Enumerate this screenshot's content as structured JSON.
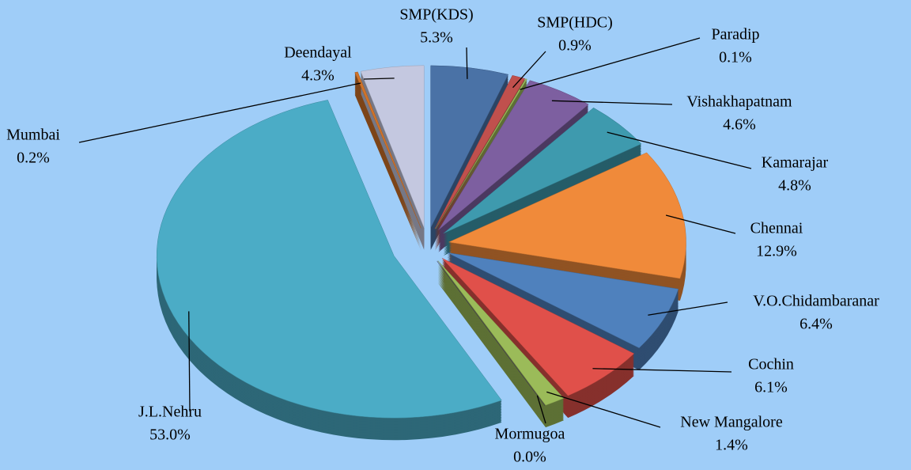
{
  "chart_data": {
    "type": "pie",
    "categories": [
      "SMP(KDS)",
      "SMP(HDC)",
      "Paradip",
      "Vishakhapatnam",
      "Kamarajar",
      "Chennai",
      "V.O.Chidambaranar",
      "Cochin",
      "New Mangalore",
      "Mormugoa",
      "J.L.Nehru",
      "Mumbai",
      "Deendayal"
    ],
    "values": [
      5.3,
      0.9,
      0.1,
      4.6,
      4.8,
      12.9,
      6.4,
      6.1,
      1.4,
      0.0,
      53.0,
      0.2,
      4.3
    ],
    "value_labels": [
      "5.3%",
      "0.9%",
      "0.1%",
      "4.6%",
      "4.8%",
      "12.9%",
      "6.4%",
      "6.1%",
      "1.4%",
      "0.0%",
      "53.0%",
      "0.2%",
      "4.3%"
    ],
    "colors": [
      "#4a72a6",
      "#c0504d",
      "#9bbb59",
      "#7d5fa0",
      "#3e9aae",
      "#f08a3a",
      "#4f81bd",
      "#e0504a",
      "#9bbb59",
      "#4a3a66",
      "#4bacc6",
      "#d0732a",
      "#c4c8e0"
    ]
  }
}
